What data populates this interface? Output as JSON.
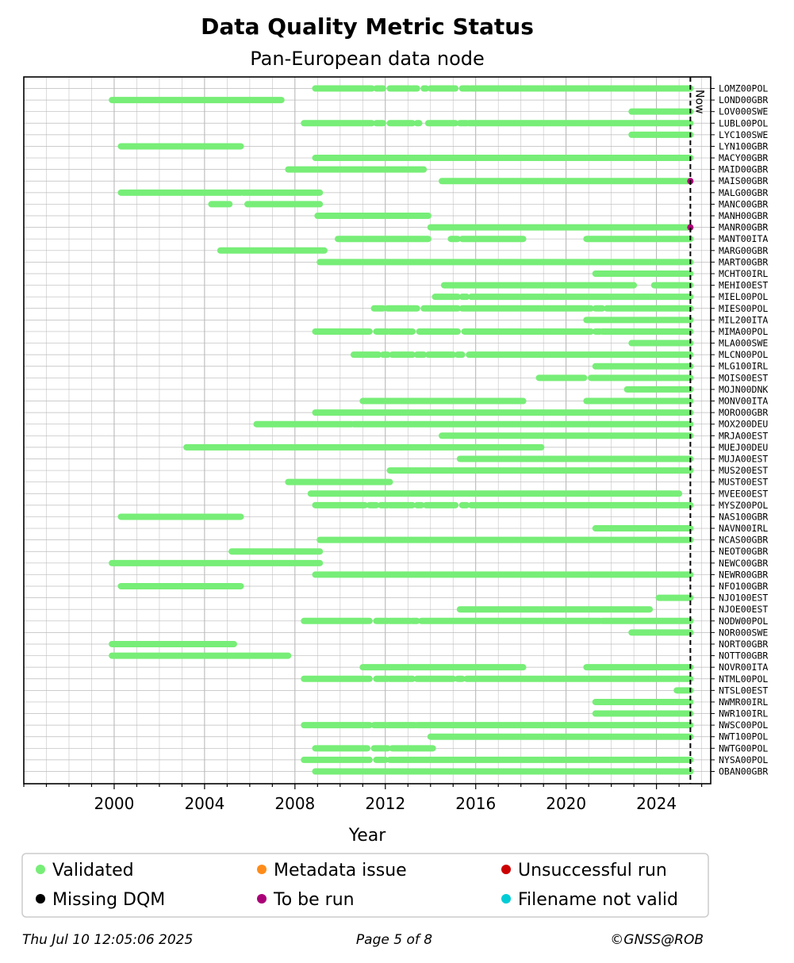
{
  "chart_data": {
    "type": "timeline",
    "title": "Data Quality Metric Status",
    "subtitle": "Pan-European data node",
    "xlabel": "Year",
    "xlim": [
      1996.0,
      2026.4
    ],
    "xticks": [
      2000,
      2004,
      2008,
      2012,
      2016,
      2020,
      2024
    ],
    "now": 2025.5,
    "now_label": "Now",
    "grid": true,
    "legend_position": "below",
    "status_colors": {
      "validated": "#77ee77",
      "metadata_issue": "#ff8c1a",
      "unsuccessful_run": "#cc0000",
      "missing_dqm": "#000000",
      "to_be_run": "#aa0077",
      "filename_not_valid": "#00ccd6"
    },
    "stations": [
      {
        "name": "LOMZ00POL",
        "segments": [
          [
            2008.9,
            2011.4
          ],
          [
            2011.6,
            2011.9
          ],
          [
            2012.2,
            2013.1
          ],
          [
            2013.2,
            2013.4
          ],
          [
            2013.7,
            2013.8
          ],
          [
            2014.0,
            2015.1
          ],
          [
            2015.4,
            2015.7
          ],
          [
            2015.8,
            2025.5
          ]
        ],
        "markers": []
      },
      {
        "name": "LOND00GBR",
        "segments": [
          [
            1999.9,
            2007.4
          ]
        ],
        "markers": []
      },
      {
        "name": "LOV000SWE",
        "segments": [
          [
            2022.9,
            2025.5
          ]
        ],
        "markers": []
      },
      {
        "name": "LUBL00POL",
        "segments": [
          [
            2008.4,
            2011.4
          ],
          [
            2011.6,
            2011.9
          ],
          [
            2012.2,
            2013.2
          ],
          [
            2013.4,
            2013.5
          ],
          [
            2013.9,
            2015.1
          ],
          [
            2015.3,
            2015.6
          ],
          [
            2015.7,
            2025.5
          ]
        ],
        "markers": []
      },
      {
        "name": "LYC100SWE",
        "segments": [
          [
            2022.9,
            2025.5
          ]
        ],
        "markers": []
      },
      {
        "name": "LYN100GBR",
        "segments": [
          [
            2000.3,
            2005.6
          ]
        ],
        "markers": []
      },
      {
        "name": "MACY00GBR",
        "segments": [
          [
            2008.9,
            2025.5
          ]
        ],
        "markers": []
      },
      {
        "name": "MAID00GBR",
        "segments": [
          [
            2007.7,
            2013.7
          ]
        ],
        "markers": []
      },
      {
        "name": "MAIS00GBR",
        "segments": [
          [
            2014.5,
            2025.4
          ]
        ],
        "markers": [
          {
            "x": 2025.5,
            "status": "to_be_run"
          }
        ]
      },
      {
        "name": "MALG00GBR",
        "segments": [
          [
            2000.3,
            2005.6
          ],
          [
            2005.7,
            2009.1
          ]
        ],
        "markers": []
      },
      {
        "name": "MANC00GBR",
        "segments": [
          [
            2004.3,
            2005.1
          ],
          [
            2005.9,
            2009.1
          ]
        ],
        "markers": []
      },
      {
        "name": "MANH00GBR",
        "segments": [
          [
            2009.0,
            2013.9
          ]
        ],
        "markers": []
      },
      {
        "name": "MANR00GBR",
        "segments": [
          [
            2014.0,
            2025.4
          ]
        ],
        "markers": [
          {
            "x": 2025.5,
            "status": "to_be_run"
          }
        ]
      },
      {
        "name": "MANT00ITA",
        "segments": [
          [
            2009.9,
            2013.9
          ],
          [
            2014.9,
            2015.2
          ],
          [
            2015.4,
            2018.1
          ],
          [
            2020.9,
            2025.5
          ]
        ],
        "markers": []
      },
      {
        "name": "MARG00GBR",
        "segments": [
          [
            2004.7,
            2009.3
          ]
        ],
        "markers": []
      },
      {
        "name": "MART00GBR",
        "segments": [
          [
            2009.1,
            2025.5
          ]
        ],
        "markers": []
      },
      {
        "name": "MCHT00IRL",
        "segments": [
          [
            2021.3,
            2025.5
          ]
        ],
        "markers": []
      },
      {
        "name": "MEHI00EST",
        "segments": [
          [
            2014.6,
            2023.0
          ],
          [
            2023.9,
            2025.5
          ]
        ],
        "markers": []
      },
      {
        "name": "MIEL00POL",
        "segments": [
          [
            2014.2,
            2015.2
          ],
          [
            2015.4,
            2015.6
          ],
          [
            2015.8,
            2019.2
          ],
          [
            2019.3,
            2025.5
          ]
        ],
        "markers": []
      },
      {
        "name": "MIES00POL",
        "segments": [
          [
            2011.5,
            2011.9
          ],
          [
            2012.1,
            2013.4
          ],
          [
            2013.7,
            2015.2
          ],
          [
            2015.4,
            2021.1
          ],
          [
            2021.3,
            2021.6
          ],
          [
            2021.8,
            2025.5
          ]
        ],
        "markers": []
      },
      {
        "name": "MIL200ITA",
        "segments": [
          [
            2020.9,
            2025.5
          ]
        ],
        "markers": []
      },
      {
        "name": "MIMA00POL",
        "segments": [
          [
            2008.9,
            2011.3
          ],
          [
            2011.6,
            2012.1
          ],
          [
            2012.2,
            2013.2
          ],
          [
            2013.5,
            2015.2
          ],
          [
            2015.5,
            2021.1
          ],
          [
            2021.3,
            2021.5
          ],
          [
            2021.6,
            2025.5
          ]
        ],
        "markers": []
      },
      {
        "name": "MLA000SWE",
        "segments": [
          [
            2022.9,
            2025.5
          ]
        ],
        "markers": []
      },
      {
        "name": "MLCN00POL",
        "segments": [
          [
            2010.6,
            2011.7
          ],
          [
            2011.9,
            2012.1
          ],
          [
            2012.3,
            2013.2
          ],
          [
            2013.4,
            2013.7
          ],
          [
            2013.9,
            2015.0
          ],
          [
            2015.2,
            2015.4
          ],
          [
            2015.7,
            2025.5
          ]
        ],
        "markers": []
      },
      {
        "name": "MLG100IRL",
        "segments": [
          [
            2021.3,
            2025.5
          ]
        ],
        "markers": []
      },
      {
        "name": "MOIS00EST",
        "segments": [
          [
            2018.8,
            2020.8
          ],
          [
            2021.1,
            2025.5
          ]
        ],
        "markers": []
      },
      {
        "name": "MOJN00DNK",
        "segments": [
          [
            2022.7,
            2025.5
          ]
        ],
        "markers": []
      },
      {
        "name": "MONV00ITA",
        "segments": [
          [
            2011.0,
            2018.1
          ],
          [
            2020.9,
            2025.5
          ]
        ],
        "markers": []
      },
      {
        "name": "MORO00GBR",
        "segments": [
          [
            2008.9,
            2025.5
          ]
        ],
        "markers": []
      },
      {
        "name": "MOX200DEU",
        "segments": [
          [
            2006.3,
            2010.5
          ],
          [
            2010.6,
            2025.5
          ]
        ],
        "markers": []
      },
      {
        "name": "MRJA00EST",
        "segments": [
          [
            2014.5,
            2025.5
          ]
        ],
        "markers": []
      },
      {
        "name": "MUEJ00DEU",
        "segments": [
          [
            2003.2,
            2018.9
          ]
        ],
        "markers": []
      },
      {
        "name": "MUJA00EST",
        "segments": [
          [
            2015.3,
            2025.5
          ]
        ],
        "markers": []
      },
      {
        "name": "MUS200EST",
        "segments": [
          [
            2012.2,
            2025.5
          ]
        ],
        "markers": []
      },
      {
        "name": "MUST00EST",
        "segments": [
          [
            2007.7,
            2012.2
          ]
        ],
        "markers": []
      },
      {
        "name": "MVEE00EST",
        "segments": [
          [
            2008.7,
            2025.0
          ]
        ],
        "markers": []
      },
      {
        "name": "MYSZ00POL",
        "segments": [
          [
            2008.9,
            2011.1
          ],
          [
            2011.3,
            2011.6
          ],
          [
            2011.8,
            2012.1
          ],
          [
            2012.2,
            2013.2
          ],
          [
            2013.4,
            2013.6
          ],
          [
            2013.8,
            2015.1
          ],
          [
            2015.4,
            2015.6
          ],
          [
            2015.8,
            2025.5
          ]
        ],
        "markers": []
      },
      {
        "name": "NAS100GBR",
        "segments": [
          [
            2000.3,
            2005.6
          ]
        ],
        "markers": []
      },
      {
        "name": "NAVN00IRL",
        "segments": [
          [
            2021.3,
            2025.5
          ]
        ],
        "markers": []
      },
      {
        "name": "NCAS00GBR",
        "segments": [
          [
            2009.1,
            2025.5
          ]
        ],
        "markers": []
      },
      {
        "name": "NEOT00GBR",
        "segments": [
          [
            2005.2,
            2009.1
          ]
        ],
        "markers": []
      },
      {
        "name": "NEWC00GBR",
        "segments": [
          [
            1999.9,
            2009.1
          ]
        ],
        "markers": []
      },
      {
        "name": "NEWR00GBR",
        "segments": [
          [
            2008.9,
            2025.5
          ]
        ],
        "markers": []
      },
      {
        "name": "NFO100GBR",
        "segments": [
          [
            2000.3,
            2005.6
          ]
        ],
        "markers": []
      },
      {
        "name": "NJO100EST",
        "segments": [
          [
            2024.1,
            2025.5
          ]
        ],
        "markers": []
      },
      {
        "name": "NJOE00EST",
        "segments": [
          [
            2015.3,
            2023.7
          ]
        ],
        "markers": []
      },
      {
        "name": "NODW00POL",
        "segments": [
          [
            2008.4,
            2011.3
          ],
          [
            2011.6,
            2012.1
          ],
          [
            2012.2,
            2013.1
          ],
          [
            2013.2,
            2013.4
          ],
          [
            2013.6,
            2021.5
          ],
          [
            2021.6,
            2025.5
          ]
        ],
        "markers": []
      },
      {
        "name": "NOR000SWE",
        "segments": [
          [
            2022.9,
            2025.5
          ]
        ],
        "markers": []
      },
      {
        "name": "NORT00GBR",
        "segments": [
          [
            1999.9,
            2005.3
          ]
        ],
        "markers": []
      },
      {
        "name": "NOTT00GBR",
        "segments": [
          [
            1999.9,
            2007.7
          ]
        ],
        "markers": []
      },
      {
        "name": "NOVR00ITA",
        "segments": [
          [
            2011.0,
            2018.1
          ],
          [
            2020.9,
            2025.5
          ]
        ],
        "markers": []
      },
      {
        "name": "NTML00POL",
        "segments": [
          [
            2008.4,
            2011.3
          ],
          [
            2011.6,
            2012.1
          ],
          [
            2012.2,
            2013.2
          ],
          [
            2013.4,
            2015.0
          ],
          [
            2015.2,
            2015.4
          ],
          [
            2015.6,
            2025.5
          ]
        ],
        "markers": []
      },
      {
        "name": "NTSL00EST",
        "segments": [
          [
            2024.9,
            2025.5
          ]
        ],
        "markers": []
      },
      {
        "name": "NWMR00IRL",
        "segments": [
          [
            2021.3,
            2025.5
          ]
        ],
        "markers": []
      },
      {
        "name": "NWR100IRL",
        "segments": [
          [
            2021.3,
            2025.5
          ]
        ],
        "markers": []
      },
      {
        "name": "NWSC00POL",
        "segments": [
          [
            2008.4,
            2011.3
          ],
          [
            2011.5,
            2012.0
          ],
          [
            2012.1,
            2013.3
          ],
          [
            2013.4,
            2025.5
          ]
        ],
        "markers": []
      },
      {
        "name": "NWT100POL",
        "segments": [
          [
            2014.0,
            2025.5
          ]
        ],
        "markers": []
      },
      {
        "name": "NWTG00POL",
        "segments": [
          [
            2008.9,
            2011.2
          ],
          [
            2011.5,
            2012.1
          ],
          [
            2012.3,
            2014.1
          ]
        ],
        "markers": []
      },
      {
        "name": "NYSA00POL",
        "segments": [
          [
            2008.4,
            2011.3
          ],
          [
            2011.6,
            2012.0
          ],
          [
            2012.2,
            2025.5
          ]
        ],
        "markers": []
      },
      {
        "name": "OBAN00GBR",
        "segments": [
          [
            2008.9,
            2025.5
          ]
        ],
        "markers": []
      }
    ]
  },
  "legend": {
    "items": [
      {
        "key": "validated",
        "label": "Validated",
        "color": "#77ee77"
      },
      {
        "key": "metadata_issue",
        "label": "Metadata issue",
        "color": "#ff8c1a"
      },
      {
        "key": "unsuccessful_run",
        "label": "Unsuccessful run",
        "color": "#cc0000"
      },
      {
        "key": "missing_dqm",
        "label": "Missing DQM",
        "color": "#000000"
      },
      {
        "key": "to_be_run",
        "label": "To be run",
        "color": "#aa0077"
      },
      {
        "key": "filename_not_valid",
        "label": "Filename not valid",
        "color": "#00ccd6"
      }
    ]
  },
  "footer": {
    "timestamp": "Thu Jul 10 12:05:06 2025",
    "page": "Page 5 of 8",
    "copyright": "©GNSS@ROB"
  }
}
